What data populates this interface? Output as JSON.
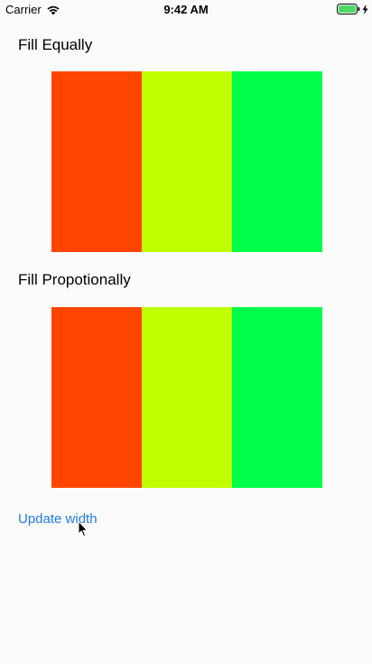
{
  "status_bar": {
    "carrier": "Carrier",
    "time": "9:42 AM",
    "wifi_icon": "wifi-icon",
    "battery_icon": "battery-icon",
    "charging_icon": "bolt-icon"
  },
  "sections": {
    "equal_title": "Fill Equally",
    "proportional_title": "Fill Propotionally"
  },
  "colors": {
    "red": "#ff4500",
    "yellow": "#bfff00",
    "green": "#00ff48",
    "link": "#1f7dec"
  },
  "actions": {
    "update_label": "Update width"
  }
}
